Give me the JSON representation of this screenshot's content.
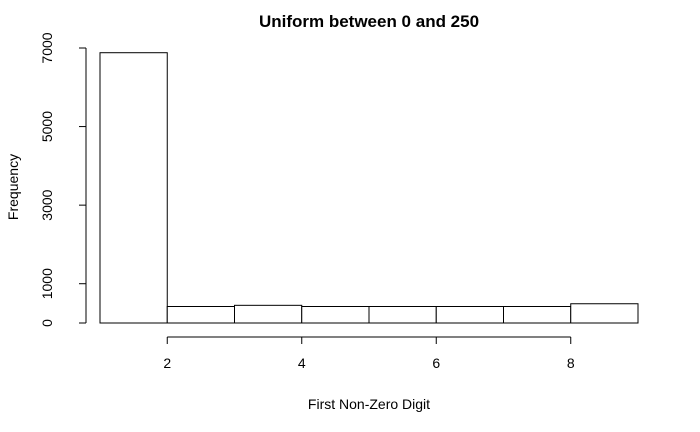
{
  "chart_data": {
    "type": "bar",
    "title": "Uniform between 0 and 250",
    "xlabel": "First Non-Zero Digit",
    "ylabel": "Frequency",
    "bin_edges": [
      1,
      2,
      3,
      4,
      5,
      6,
      7,
      8,
      9
    ],
    "values": [
      6880,
      420,
      450,
      420,
      420,
      420,
      420,
      490
    ],
    "xlim": [
      1,
      9
    ],
    "ylim": [
      0,
      7000
    ],
    "x_ticks": [
      2,
      4,
      6,
      8
    ],
    "y_ticks": [
      0,
      1000,
      3000,
      5000,
      7000
    ],
    "grid": false,
    "legend": "none",
    "bar_fill": "#ffffff",
    "bar_stroke": "#000000"
  }
}
